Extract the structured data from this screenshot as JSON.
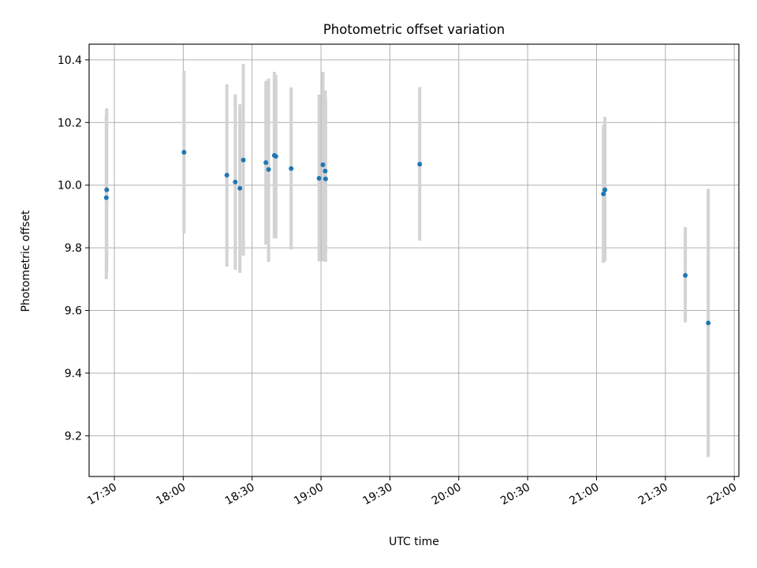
{
  "chart_data": {
    "type": "scatter",
    "title": "Photometric offset variation",
    "xlabel": "UTC time",
    "ylabel": "Photometric offset",
    "x_tick_labels": [
      "17:30",
      "18:00",
      "18:30",
      "19:00",
      "19:30",
      "20:00",
      "20:30",
      "21:00",
      "21:30",
      "22:00"
    ],
    "y_tick_labels": [
      "9.2",
      "9.4",
      "9.6",
      "9.8",
      "10.0",
      "10.2",
      "10.4"
    ],
    "xlim": [
      "17:19:00",
      "22:02:00"
    ],
    "ylim": [
      9.07,
      10.45
    ],
    "grid": true,
    "series": [
      {
        "marker_color": "#1f77b4",
        "errorbar_color": "#d3d3d3",
        "points": [
          {
            "x": "17:26:30",
            "y": 9.96,
            "err_low": 9.7,
            "err_high": 10.225
          },
          {
            "x": "17:26:40",
            "y": 9.985,
            "err_low": 9.725,
            "err_high": 10.245
          },
          {
            "x": "18:00:20",
            "y": 10.105,
            "err_low": 9.845,
            "err_high": 10.365
          },
          {
            "x": "18:19:00",
            "y": 10.032,
            "err_low": 9.74,
            "err_high": 10.322
          },
          {
            "x": "18:22:40",
            "y": 10.01,
            "err_low": 9.73,
            "err_high": 10.29
          },
          {
            "x": "18:24:40",
            "y": 9.99,
            "err_low": 9.72,
            "err_high": 10.258
          },
          {
            "x": "18:26:10",
            "y": 10.08,
            "err_low": 9.775,
            "err_high": 10.387
          },
          {
            "x": "18:36:00",
            "y": 10.072,
            "err_low": 9.81,
            "err_high": 10.333
          },
          {
            "x": "18:37:10",
            "y": 10.05,
            "err_low": 9.755,
            "err_high": 10.34
          },
          {
            "x": "18:39:40",
            "y": 10.095,
            "err_low": 9.83,
            "err_high": 10.362
          },
          {
            "x": "18:40:20",
            "y": 10.092,
            "err_low": 9.83,
            "err_high": 10.352
          },
          {
            "x": "18:47:00",
            "y": 10.053,
            "err_low": 9.795,
            "err_high": 10.312
          },
          {
            "x": "18:59:10",
            "y": 10.022,
            "err_low": 9.757,
            "err_high": 10.289
          },
          {
            "x": "19:00:50",
            "y": 10.065,
            "err_low": 9.757,
            "err_high": 10.362
          },
          {
            "x": "19:01:50",
            "y": 10.045,
            "err_low": 9.78,
            "err_high": 10.302
          },
          {
            "x": "19:02:00",
            "y": 10.02,
            "err_low": 9.755,
            "err_high": 10.28
          },
          {
            "x": "19:43:00",
            "y": 10.067,
            "err_low": 9.823,
            "err_high": 10.313
          },
          {
            "x": "21:03:00",
            "y": 9.972,
            "err_low": 9.752,
            "err_high": 10.192
          },
          {
            "x": "21:03:40",
            "y": 9.985,
            "err_low": 9.757,
            "err_high": 10.218
          },
          {
            "x": "21:38:40",
            "y": 9.712,
            "err_low": 9.562,
            "err_high": 9.866
          },
          {
            "x": "21:48:40",
            "y": 9.56,
            "err_low": 9.132,
            "err_high": 9.988
          }
        ]
      }
    ]
  }
}
